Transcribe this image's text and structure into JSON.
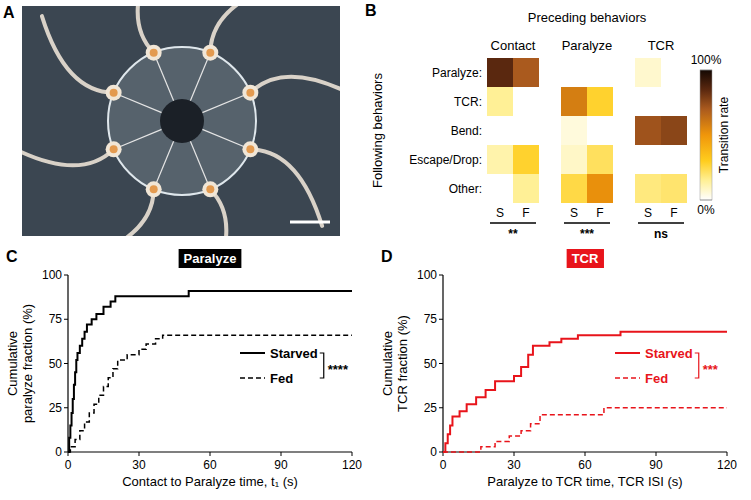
{
  "chart_data": [
    {
      "type": "image",
      "panel_label": "A"
    },
    {
      "type": "heatmap",
      "panel_label": "B",
      "title": "Preceding behaviors",
      "y_label": "Following behaviors",
      "rows": [
        "Paralyze:",
        "TCR:",
        "Bend:",
        "Escape/Drop:",
        "Other:"
      ],
      "groups": [
        {
          "name": "Contact",
          "columns": [
            "S",
            "F"
          ],
          "cells": [
            [
              85,
              70
            ],
            [
              15,
              0
            ],
            [
              0,
              0
            ],
            [
              12,
              28
            ],
            [
              0,
              15
            ]
          ],
          "significance": "**"
        },
        {
          "name": "Paralyze",
          "columns": [
            "S",
            "F"
          ],
          "cells": [
            [
              0,
              0
            ],
            [
              58,
              28
            ],
            [
              5,
              0
            ],
            [
              8,
              22
            ],
            [
              25,
              52
            ]
          ],
          "significance": "***"
        },
        {
          "name": "TCR",
          "columns": [
            "S",
            "F"
          ],
          "cells": [
            [
              7,
              0
            ],
            [
              0,
              0
            ],
            [
              72,
              76
            ],
            [
              0,
              0
            ],
            [
              18,
              20
            ]
          ],
          "significance": "ns"
        }
      ],
      "colorbar": {
        "label": "Transition rate",
        "range": [
          0,
          100
        ],
        "ticks": [
          {
            "value": 0,
            "label": "0%"
          },
          {
            "value": 100,
            "label": "100%"
          }
        ]
      }
    },
    {
      "type": "line",
      "panel_label": "C",
      "title": "Paralyze",
      "x_label": "Contact to Paralyze time, t₁ (s)",
      "y_label": "Cumulative paralyze fraction (%)",
      "xlim": [
        0,
        120
      ],
      "ylim": [
        0,
        100
      ],
      "xticks": [
        0,
        30,
        60,
        90,
        120
      ],
      "yticks": [
        0,
        25,
        50,
        75,
        100
      ],
      "legend": "right",
      "annotations": [
        "****"
      ],
      "series": [
        {
          "name": "Starved",
          "color": "#000000",
          "line_style": "solid",
          "x": [
            0,
            0.5,
            0.5,
            1,
            1,
            1.5,
            1.5,
            2,
            2,
            2.5,
            2.5,
            3,
            3,
            3.5,
            3.5,
            4,
            4,
            5,
            5,
            6,
            6,
            7,
            7,
            8,
            8,
            10,
            10,
            12,
            12,
            15,
            15,
            18,
            18,
            20,
            20,
            51,
            51,
            120
          ],
          "values": [
            0,
            0,
            8,
            8,
            15,
            15,
            22,
            22,
            30,
            30,
            38,
            38,
            45,
            45,
            52,
            52,
            56,
            56,
            60,
            60,
            64,
            64,
            68,
            68,
            72,
            72,
            75,
            75,
            78,
            78,
            82,
            82,
            85,
            85,
            88,
            88,
            91,
            91
          ]
        },
        {
          "name": "Fed",
          "color": "#000000",
          "line_style": "dashed",
          "x": [
            0,
            1,
            1,
            3,
            3,
            5,
            5,
            7,
            7,
            9,
            9,
            11,
            11,
            13,
            13,
            15,
            15,
            17,
            17,
            19,
            19,
            21,
            21,
            25,
            25,
            30,
            30,
            33,
            33,
            37,
            37,
            40,
            40,
            120
          ],
          "values": [
            0,
            0,
            3,
            3,
            7,
            7,
            12,
            12,
            17,
            17,
            22,
            22,
            27,
            27,
            32,
            32,
            37,
            37,
            42,
            42,
            47,
            47,
            52,
            52,
            55,
            55,
            58,
            58,
            61,
            61,
            64,
            64,
            66,
            66
          ]
        }
      ]
    },
    {
      "type": "line",
      "panel_label": "D",
      "title": "TCR",
      "x_label": "Paralyze to TCR time, TCR ISI (s)",
      "y_label": "Cumulative TCR fraction (%)",
      "xlim": [
        0,
        120
      ],
      "ylim": [
        0,
        100
      ],
      "xticks": [
        0,
        30,
        60,
        90,
        120
      ],
      "yticks": [
        0,
        25,
        50,
        75,
        100
      ],
      "legend": "right",
      "annotations": [
        "***"
      ],
      "series": [
        {
          "name": "Starved",
          "color": "#e8141b",
          "line_style": "solid",
          "x": [
            0,
            1,
            1,
            2,
            2,
            3,
            3,
            4,
            4,
            7,
            7,
            10,
            10,
            14,
            14,
            18,
            18,
            22,
            22,
            30,
            30,
            33,
            33,
            36,
            36,
            38,
            38,
            45,
            45,
            50,
            50,
            57,
            57,
            75,
            75,
            120
          ],
          "values": [
            0,
            0,
            5,
            5,
            10,
            10,
            15,
            15,
            20,
            20,
            23,
            23,
            27,
            27,
            31,
            31,
            35,
            35,
            40,
            40,
            43,
            43,
            48,
            48,
            55,
            55,
            60,
            60,
            62,
            62,
            64,
            64,
            66,
            66,
            68,
            68
          ]
        },
        {
          "name": "Fed",
          "color": "#e8141b",
          "line_style": "dashed",
          "x": [
            0,
            16,
            16,
            22,
            22,
            28,
            28,
            33,
            33,
            37,
            37,
            41,
            41,
            68,
            68,
            120
          ],
          "values": [
            0,
            0,
            3,
            3,
            6,
            6,
            9,
            9,
            12,
            12,
            16,
            16,
            21,
            21,
            25,
            25
          ]
        }
      ]
    }
  ]
}
